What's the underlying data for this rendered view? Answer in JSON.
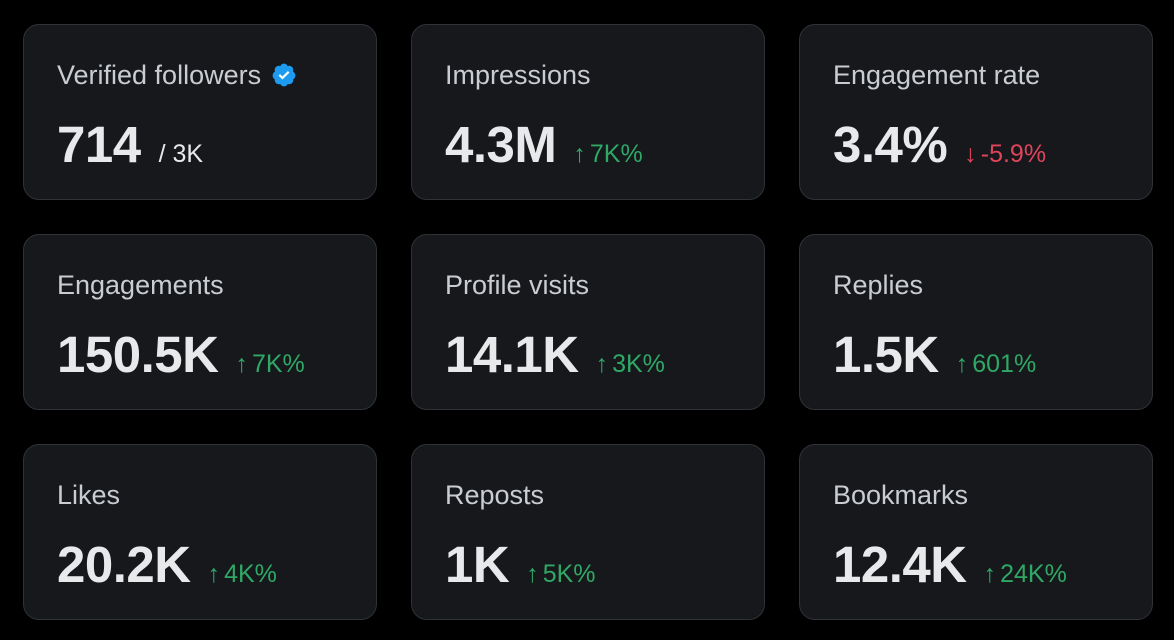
{
  "colors": {
    "background": "#000000",
    "card_background": "#16181c",
    "card_border": "#2f3336",
    "label": "#c9ccd0",
    "value": "#e7e9ea",
    "positive": "#2fa866",
    "negative": "#e0445b",
    "verified_badge": "#1d9bf0"
  },
  "metrics": [
    {
      "label": "Verified followers",
      "icon": "verified-badge-icon",
      "value": "714",
      "denominator": "/ 3K"
    },
    {
      "label": "Impressions",
      "value": "4.3M",
      "change": "7K%",
      "direction": "up"
    },
    {
      "label": "Engagement rate",
      "value": "3.4%",
      "change": "-5.9%",
      "direction": "down"
    },
    {
      "label": "Engagements",
      "value": "150.5K",
      "change": "7K%",
      "direction": "up"
    },
    {
      "label": "Profile visits",
      "value": "14.1K",
      "change": "3K%",
      "direction": "up"
    },
    {
      "label": "Replies",
      "value": "1.5K",
      "change": "601%",
      "direction": "up"
    },
    {
      "label": "Likes",
      "value": "20.2K",
      "change": "4K%",
      "direction": "up"
    },
    {
      "label": "Reposts",
      "value": "1K",
      "change": "5K%",
      "direction": "up"
    },
    {
      "label": "Bookmarks",
      "value": "12.4K",
      "change": "24K%",
      "direction": "up"
    }
  ]
}
